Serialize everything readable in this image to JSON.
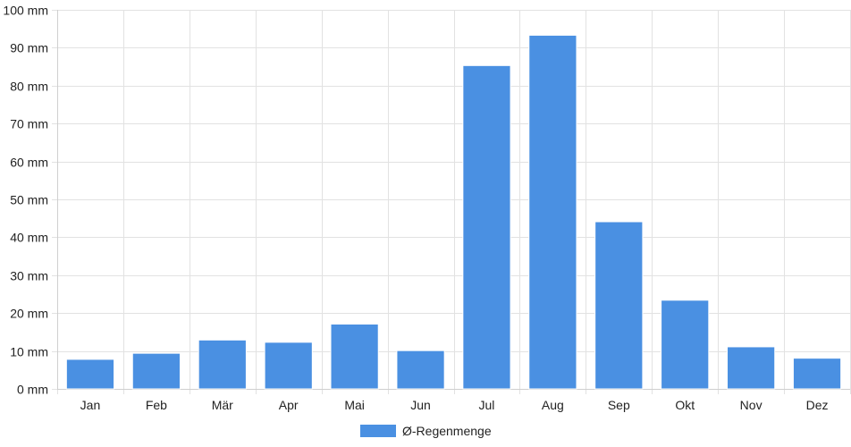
{
  "chart_data": {
    "type": "bar",
    "categories": [
      "Jan",
      "Feb",
      "Mär",
      "Apr",
      "Mai",
      "Jun",
      "Jul",
      "Aug",
      "Sep",
      "Okt",
      "Nov",
      "Dez"
    ],
    "series": [
      {
        "name": "Ø-Regenmenge",
        "values": [
          7.8,
          9.4,
          12.9,
          12.3,
          17.1,
          10.1,
          85.3,
          93.3,
          44.1,
          23.4,
          11.1,
          8.1
        ],
        "color": "#4a90e2"
      }
    ],
    "ylim": [
      0,
      100
    ],
    "y_ticks": [
      0,
      10,
      20,
      30,
      40,
      50,
      60,
      70,
      80,
      90,
      100
    ],
    "y_unit": "mm",
    "grid": true,
    "legend_position": "bottom-center"
  }
}
